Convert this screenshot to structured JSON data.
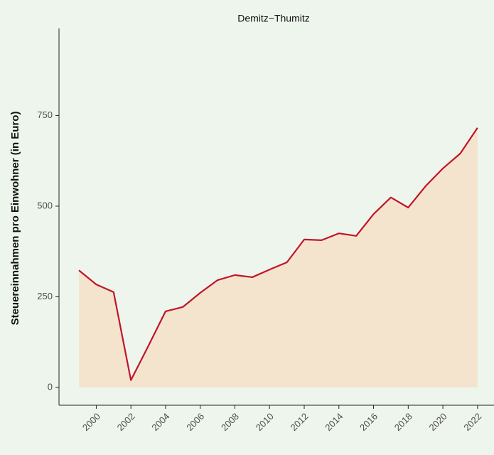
{
  "chart_data": {
    "type": "area_line",
    "title": "Demitz−Thumitz",
    "y_label": "Steuereinnahmen pro Einwohner (in Euro)",
    "x": [
      1999,
      2000,
      2001,
      2002,
      2003,
      2004,
      2005,
      2006,
      2007,
      2008,
      2009,
      2010,
      2011,
      2012,
      2013,
      2014,
      2015,
      2016,
      2017,
      2018,
      2019,
      2020,
      2021,
      2022
    ],
    "series": [
      {
        "name": "Demitz−Thumitz",
        "color": "#c0142a",
        "fill": "#f5e4cd",
        "values": [
          323,
          284,
          263,
          20,
          114,
          210,
          222,
          261,
          296,
          310,
          304,
          325,
          345,
          408,
          406,
          425,
          418,
          478,
          524,
          496,
          555,
          604,
          645,
          716
        ]
      }
    ],
    "xlim": [
      1997.85,
      2022.95
    ],
    "xticks": [
      2000,
      2002,
      2004,
      2006,
      2008,
      2010,
      2012,
      2014,
      2016,
      2018,
      2020,
      2022
    ],
    "ylim": [
      -49,
      990
    ],
    "yticks": [
      0,
      250,
      500,
      750
    ],
    "grid": false
  }
}
